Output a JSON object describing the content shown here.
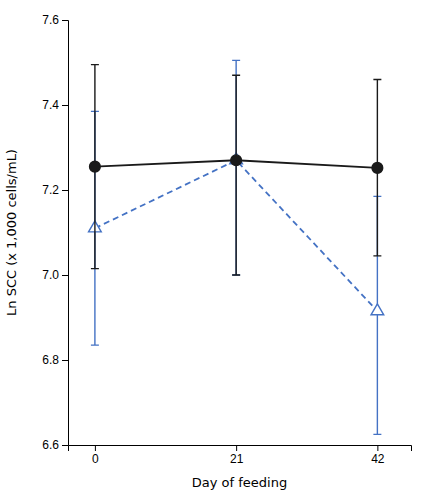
{
  "chart_data": {
    "type": "line",
    "xlabel": "Day of feeding",
    "ylabel": "Ln SCC (x 1,000 cells/mL)",
    "x": [
      0,
      21,
      42
    ],
    "series": [
      {
        "color": "#4472c4",
        "marker": "triangle-open",
        "line_style": "dashed",
        "values": [
          7.11,
          7.27,
          6.915
        ],
        "upper": [
          7.385,
          7.505,
          7.185
        ],
        "lower": [
          6.835,
          7.0,
          6.625
        ]
      },
      {
        "color": "#1a1a1a",
        "marker": "circle",
        "line_style": "solid",
        "values": [
          7.255,
          7.27,
          7.252
        ],
        "upper": [
          7.495,
          7.47,
          7.46
        ],
        "lower": [
          7.015,
          7.0,
          7.045
        ]
      }
    ],
    "xlim": [
      -4,
      47
    ],
    "xticks": [
      0,
      21,
      42
    ],
    "ylim": [
      6.6,
      7.6
    ],
    "yticks": [
      6.6,
      6.8,
      {
        "value": 7.0,
        "label": "7.0"
      },
      7.2,
      7.4,
      7.6
    ]
  }
}
